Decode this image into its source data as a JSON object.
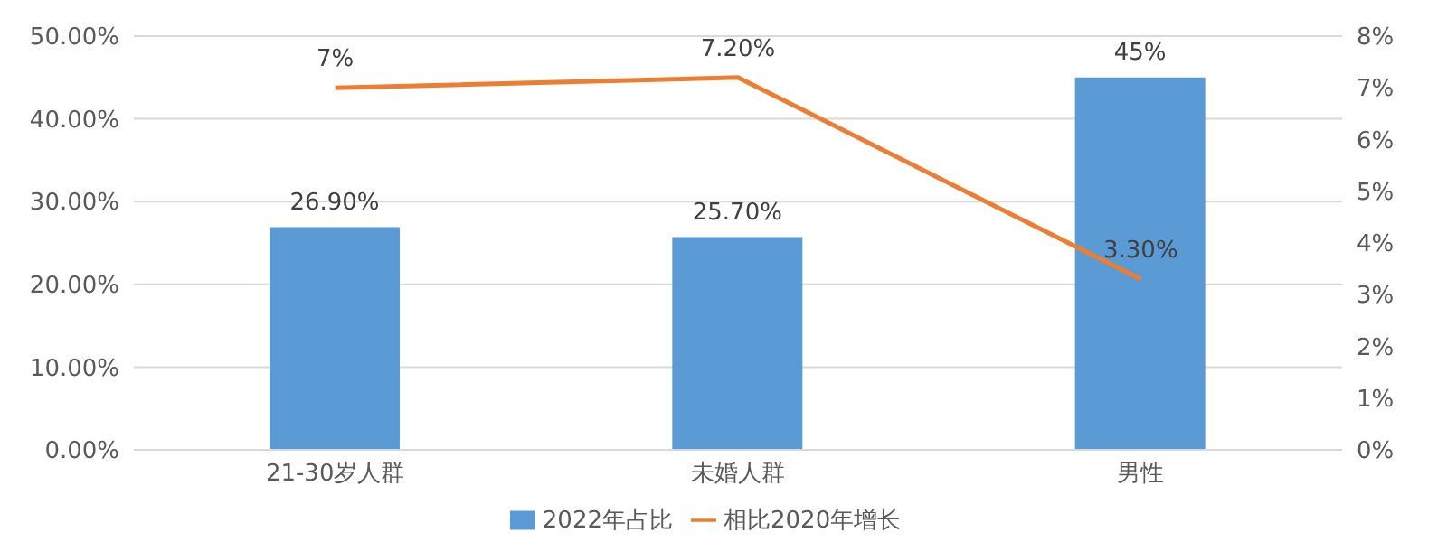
{
  "chart_data": {
    "type": "bar",
    "categories": [
      "21-30岁人群",
      "未婚人群",
      "男性"
    ],
    "series": [
      {
        "name": "2022年占比",
        "color": "#5b9bd5",
        "values": [
          26.9,
          25.7,
          45
        ],
        "value_labels": [
          "26.90%",
          "25.70%",
          "45%"
        ]
      },
      {
        "name": "相比2020年增长",
        "type": "line",
        "axis": "y2",
        "color": "#ed7d31",
        "values": [
          7,
          7.2,
          3.3
        ],
        "value_labels": [
          "7%",
          "7.20%",
          "3.30%"
        ]
      }
    ],
    "ylim": [
      0,
      50
    ],
    "yticks": [
      {
        "value": 0,
        "label": "0.00%"
      },
      {
        "value": 10,
        "label": "10.00%"
      },
      {
        "value": 20,
        "label": "20.00%"
      },
      {
        "value": 30,
        "label": "30.00%"
      },
      {
        "value": 40,
        "label": "40.00%"
      },
      {
        "value": 50,
        "label": "50.00%"
      }
    ],
    "y2lim": [
      0,
      8
    ],
    "y2ticks": [
      {
        "value": 0,
        "label": "0%"
      },
      {
        "value": 1,
        "label": "1%"
      },
      {
        "value": 2,
        "label": "2%"
      },
      {
        "value": 3,
        "label": "3%"
      },
      {
        "value": 4,
        "label": "4%"
      },
      {
        "value": 5,
        "label": "5%"
      },
      {
        "value": 6,
        "label": "6%"
      },
      {
        "value": 7,
        "label": "7%"
      },
      {
        "value": 8,
        "label": "8%"
      }
    ],
    "grid": "y",
    "legend": "bottom",
    "marker": "none"
  }
}
